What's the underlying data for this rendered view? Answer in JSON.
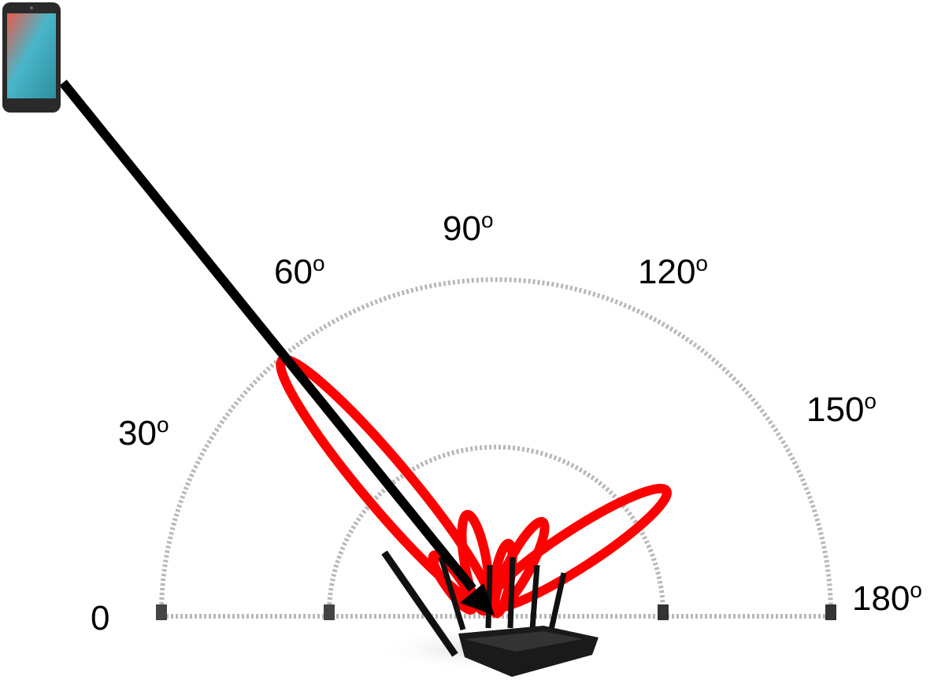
{
  "angle_labels": [
    {
      "text": "0"
    },
    {
      "text": "30",
      "sup": "o"
    },
    {
      "text": "60",
      "sup": "o"
    },
    {
      "text": "90",
      "sup": "o"
    },
    {
      "text": "120",
      "sup": "o"
    },
    {
      "text": "150",
      "sup": "o"
    },
    {
      "text": "180",
      "sup": "o"
    }
  ]
}
